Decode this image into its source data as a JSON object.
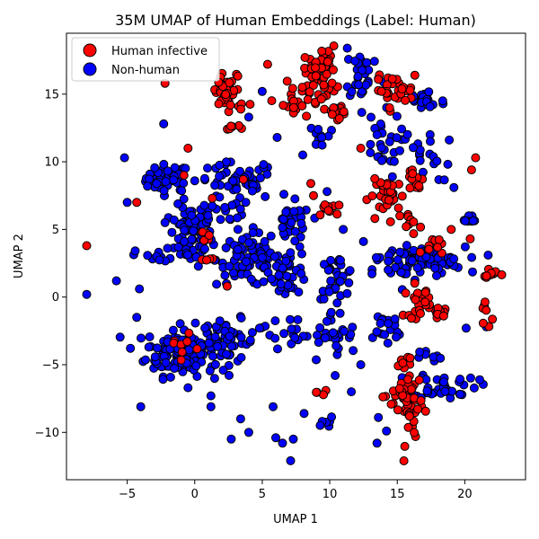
{
  "chart_data": {
    "type": "scatter",
    "title": "35M UMAP of Human Embeddings (Label: Human)",
    "xlabel": "UMAP 1",
    "ylabel": "UMAP 2",
    "xlim": [
      -9.5,
      24.5
    ],
    "ylim": [
      -13.5,
      19.5
    ],
    "xticks": [
      -5,
      0,
      5,
      10,
      15,
      20
    ],
    "yticks": [
      -10,
      -5,
      0,
      5,
      10,
      15
    ],
    "grid": false,
    "legend_position": "top-left",
    "series": [
      {
        "name": "Human infective",
        "color": "#ff0000",
        "edgecolor": "#000000",
        "clusters": [
          {
            "cx": 2.5,
            "cy": 15.0,
            "sx": 0.7,
            "sy": 0.8,
            "n": 40
          },
          {
            "cx": 9.3,
            "cy": 16.5,
            "sx": 0.6,
            "sy": 1.0,
            "n": 55
          },
          {
            "cx": 7.2,
            "cy": 14.2,
            "sx": 0.5,
            "sy": 0.8,
            "n": 18
          },
          {
            "cx": 10.5,
            "cy": 13.8,
            "sx": 0.6,
            "sy": 0.3,
            "n": 15
          },
          {
            "cx": 14.8,
            "cy": 15.3,
            "sx": 0.7,
            "sy": 0.5,
            "n": 30
          },
          {
            "cx": 14.3,
            "cy": 7.5,
            "sx": 0.7,
            "sy": 0.6,
            "n": 30
          },
          {
            "cx": 16.5,
            "cy": 8.5,
            "sx": 0.4,
            "sy": 0.6,
            "n": 14
          },
          {
            "cx": 16.0,
            "cy": 5.5,
            "sx": 0.4,
            "sy": 0.4,
            "n": 10
          },
          {
            "cx": 16.5,
            "cy": -0.3,
            "sx": 0.5,
            "sy": 0.6,
            "n": 25
          },
          {
            "cx": 18.2,
            "cy": -1.2,
            "sx": 0.3,
            "sy": 0.2,
            "n": 8
          },
          {
            "cx": 16.0,
            "cy": -8.0,
            "sx": 0.4,
            "sy": 1.4,
            "n": 45
          },
          {
            "cx": 14.6,
            "cy": -7.2,
            "sx": 0.5,
            "sy": 0.3,
            "n": 10
          },
          {
            "cx": 15.5,
            "cy": -4.8,
            "sx": 0.4,
            "sy": 0.3,
            "n": 8
          },
          {
            "cx": 17.5,
            "cy": 3.8,
            "sx": 0.4,
            "sy": 0.4,
            "n": 10
          },
          {
            "cx": 22.2,
            "cy": 1.6,
            "sx": 0.4,
            "sy": 0.2,
            "n": 10
          },
          {
            "cx": 21.5,
            "cy": -1.2,
            "sx": 0.2,
            "sy": 0.6,
            "n": 8
          },
          {
            "cx": 0.8,
            "cy": 4.5,
            "sx": 0.3,
            "sy": 0.3,
            "n": 6
          },
          {
            "cx": 0.8,
            "cy": 2.8,
            "sx": 0.3,
            "sy": 0.2,
            "n": 5
          },
          {
            "cx": -1.0,
            "cy": -3.7,
            "sx": 0.5,
            "sy": 0.4,
            "n": 8
          },
          {
            "cx": 10.0,
            "cy": 6.5,
            "sx": 0.6,
            "sy": 0.3,
            "n": 10
          },
          {
            "cx": 2.8,
            "cy": 12.6,
            "sx": 0.4,
            "sy": 0.2,
            "n": 6
          },
          {
            "cx": 9.3,
            "cy": -7.0,
            "sx": 0.3,
            "sy": 0.3,
            "n": 4
          }
        ],
        "points": [
          [
            -8.0,
            3.8
          ],
          [
            5.4,
            17.2
          ],
          [
            -2.2,
            15.8
          ],
          [
            16.3,
            16.4
          ],
          [
            19.0,
            5.0
          ],
          [
            20.5,
            9.4
          ],
          [
            20.8,
            10.3
          ],
          [
            8.6,
            8.4
          ],
          [
            -0.5,
            11.0
          ],
          [
            1.3,
            7.3
          ],
          [
            20.4,
            4.3
          ],
          [
            12.3,
            11.0
          ],
          [
            -4.3,
            7.0
          ],
          [
            -0.8,
            9.0
          ],
          [
            3.6,
            8.7
          ],
          [
            2.4,
            0.8
          ],
          [
            8.8,
            7.5
          ]
        ]
      },
      {
        "name": "Non-human",
        "color": "#0000ff",
        "edgecolor": "#000000",
        "clusters": [
          {
            "cx": -2.0,
            "cy": 8.8,
            "sx": 0.8,
            "sy": 0.5,
            "n": 45
          },
          {
            "cx": -0.3,
            "cy": 4.5,
            "sx": 0.8,
            "sy": 1.1,
            "n": 70
          },
          {
            "cx": -1.0,
            "cy": -4.0,
            "sx": 1.3,
            "sy": 0.9,
            "n": 140
          },
          {
            "cx": 2.5,
            "cy": -3.3,
            "sx": 1.0,
            "sy": 0.8,
            "n": 45
          },
          {
            "cx": 4.0,
            "cy": 2.8,
            "sx": 1.2,
            "sy": 1.0,
            "n": 80
          },
          {
            "cx": 3.0,
            "cy": 8.5,
            "sx": 1.5,
            "sy": 0.7,
            "n": 45
          },
          {
            "cx": 7.2,
            "cy": 5.3,
            "sx": 0.7,
            "sy": 0.8,
            "n": 30
          },
          {
            "cx": 7.0,
            "cy": 2.0,
            "sx": 0.7,
            "sy": 0.9,
            "n": 40
          },
          {
            "cx": 10.5,
            "cy": 1.5,
            "sx": 0.7,
            "sy": 0.8,
            "n": 30
          },
          {
            "cx": 17.0,
            "cy": 2.7,
            "sx": 1.5,
            "sy": 0.5,
            "n": 60
          },
          {
            "cx": 14.8,
            "cy": 2.0,
            "sx": 0.8,
            "sy": 0.8,
            "n": 20
          },
          {
            "cx": 17.0,
            "cy": 14.5,
            "sx": 0.8,
            "sy": 0.5,
            "n": 25
          },
          {
            "cx": 12.5,
            "cy": 16.5,
            "sx": 0.7,
            "sy": 1.0,
            "n": 30
          },
          {
            "cx": 10.2,
            "cy": -3.0,
            "sx": 1.0,
            "sy": 1.0,
            "n": 30
          },
          {
            "cx": 18.5,
            "cy": -6.5,
            "sx": 1.2,
            "sy": 0.5,
            "n": 40
          },
          {
            "cx": 14.0,
            "cy": -2.5,
            "sx": 0.8,
            "sy": 0.8,
            "n": 20
          },
          {
            "cx": 13.7,
            "cy": 11.2,
            "sx": 0.8,
            "sy": 1.2,
            "n": 25
          },
          {
            "cx": 17.0,
            "cy": 10.5,
            "sx": 1.0,
            "sy": 1.0,
            "n": 20
          },
          {
            "cx": 2.0,
            "cy": 6.5,
            "sx": 0.8,
            "sy": 0.5,
            "n": 20
          },
          {
            "cx": 6.5,
            "cy": -2.5,
            "sx": 0.8,
            "sy": 0.6,
            "n": 15
          },
          {
            "cx": 20.2,
            "cy": 5.7,
            "sx": 0.4,
            "sy": 0.3,
            "n": 8
          },
          {
            "cx": -3.0,
            "cy": 3.0,
            "sx": 0.7,
            "sy": 0.3,
            "n": 12
          },
          {
            "cx": 9.8,
            "cy": -9.5,
            "sx": 0.4,
            "sy": 0.3,
            "n": 6
          },
          {
            "cx": 9.3,
            "cy": 12.0,
            "sx": 0.6,
            "sy": 0.5,
            "n": 10
          },
          {
            "cx": 17.5,
            "cy": -4.5,
            "sx": 0.4,
            "sy": 0.3,
            "n": 8
          }
        ],
        "points": [
          [
            -8.0,
            0.2
          ],
          [
            -5.2,
            10.3
          ],
          [
            -4.3,
            -1.5
          ],
          [
            -4.0,
            -8.1
          ],
          [
            -5.0,
            7.0
          ],
          [
            -5.8,
            1.2
          ],
          [
            -2.3,
            12.8
          ],
          [
            -2.2,
            5.5
          ],
          [
            -3.5,
            8.2
          ],
          [
            0.0,
            8.6
          ],
          [
            -0.5,
            -6.7
          ],
          [
            1.2,
            -7.3
          ],
          [
            1.2,
            -8.1
          ],
          [
            2.7,
            -10.5
          ],
          [
            3.4,
            -9.0
          ],
          [
            4.0,
            -10.0
          ],
          [
            5.8,
            -8.1
          ],
          [
            6.0,
            -10.4
          ],
          [
            6.5,
            -10.8
          ],
          [
            7.1,
            -12.1
          ],
          [
            7.3,
            -10.5
          ],
          [
            8.1,
            -8.6
          ],
          [
            5.0,
            15.2
          ],
          [
            4.0,
            13.3
          ],
          [
            6.1,
            11.8
          ],
          [
            5.1,
            9.8
          ],
          [
            11.3,
            18.4
          ],
          [
            13.5,
            12.0
          ],
          [
            11.0,
            5.0
          ],
          [
            12.5,
            4.1
          ],
          [
            12.3,
            -5.0
          ],
          [
            13.5,
            -10.8
          ],
          [
            14.2,
            -9.9
          ],
          [
            13.6,
            -8.9
          ],
          [
            19.2,
            8.1
          ],
          [
            20.1,
            -2.3
          ],
          [
            21.6,
            -2.2
          ],
          [
            -4.1,
            0.6
          ],
          [
            -3.4,
            -3.7
          ],
          [
            6.6,
            7.6
          ],
          [
            8.0,
            10.5
          ],
          [
            9.8,
            7.8
          ],
          [
            4.8,
            -2.3
          ],
          [
            11.6,
            -7.0
          ],
          [
            10.4,
            -5.8
          ],
          [
            3.2,
            5.0
          ]
        ]
      }
    ]
  }
}
